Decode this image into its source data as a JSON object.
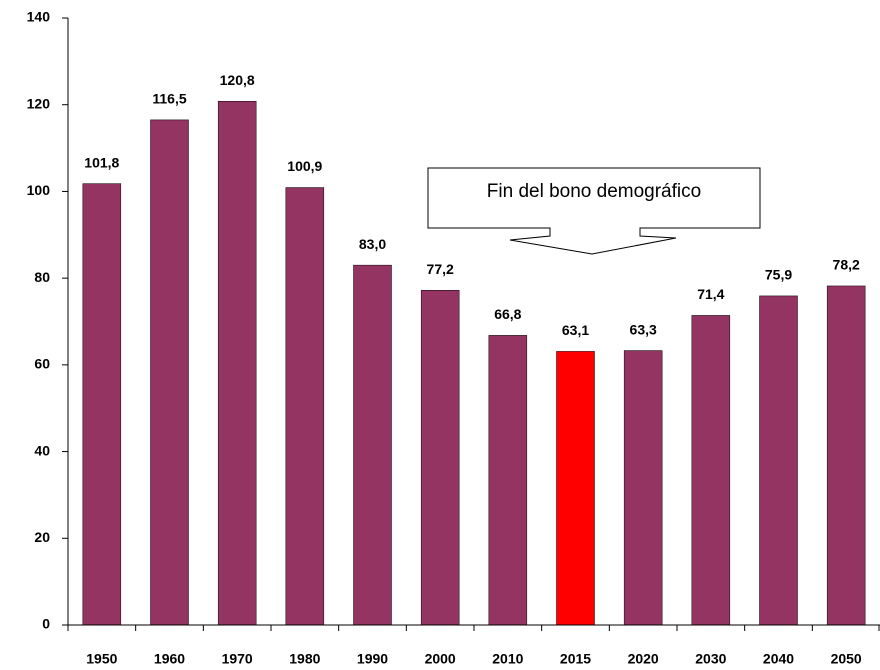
{
  "chart_data": {
    "type": "bar",
    "categories": [
      "1950",
      "1960",
      "1970",
      "1980",
      "1990",
      "2000",
      "2010",
      "2015",
      "2020",
      "2030",
      "2040",
      "2050"
    ],
    "values": [
      101.8,
      116.5,
      120.8,
      100.9,
      83.0,
      77.2,
      66.8,
      63.1,
      63.3,
      71.4,
      75.9,
      78.2
    ],
    "value_labels": [
      "101,8",
      "116,5",
      "120,8",
      "100,9",
      "83,0",
      "77,2",
      "66,8",
      "63,1",
      "63,3",
      "71,4",
      "75,9",
      "78,2"
    ],
    "colors": [
      "#943462",
      "#943462",
      "#943462",
      "#943462",
      "#943462",
      "#943462",
      "#943462",
      "#ff0000",
      "#943462",
      "#943462",
      "#943462",
      "#943462"
    ],
    "ylim": [
      0,
      140
    ],
    "yticks": [
      0,
      20,
      40,
      60,
      80,
      100,
      120,
      140
    ],
    "grid": false,
    "annotation": "Fin del bono demográfico"
  }
}
